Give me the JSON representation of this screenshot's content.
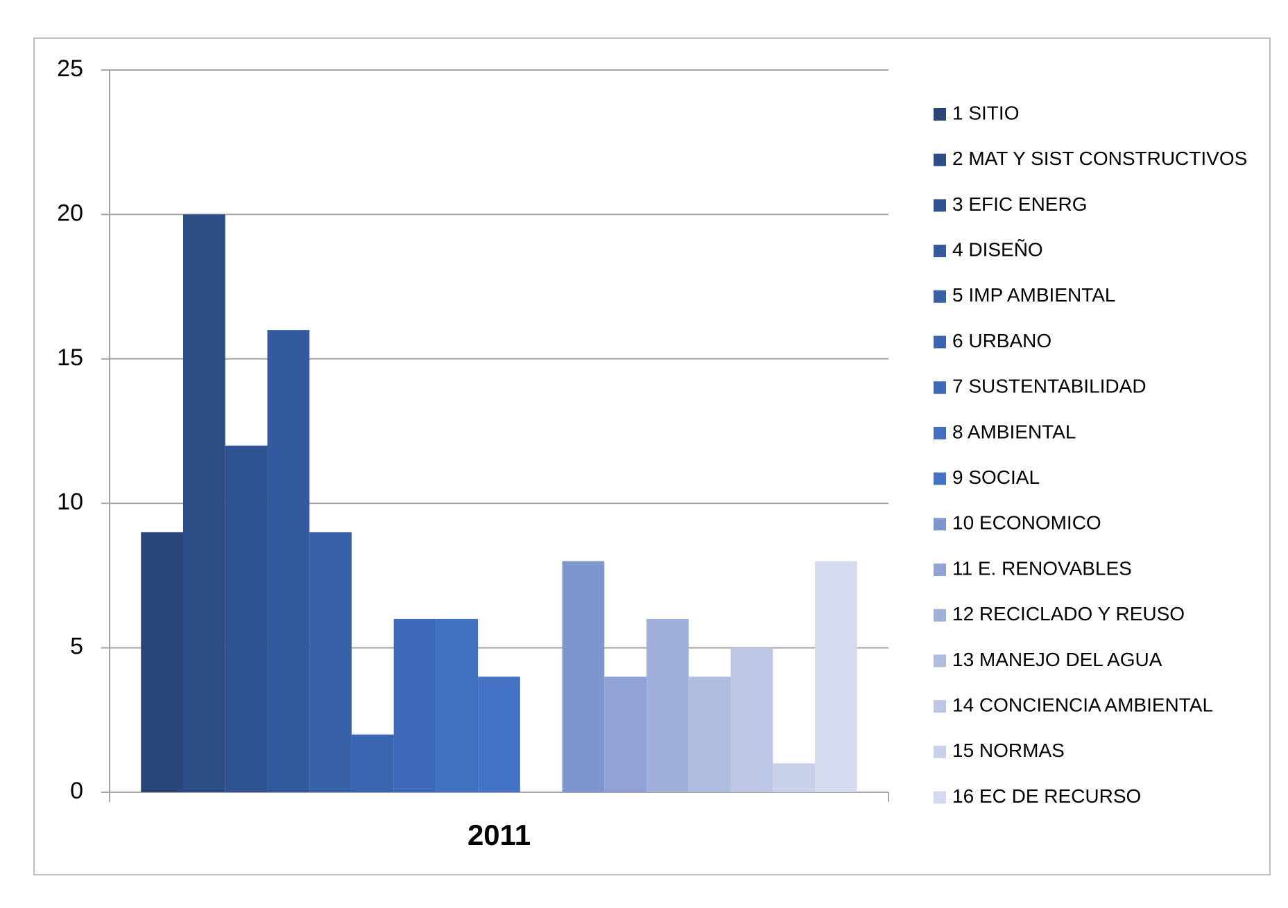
{
  "chart_data": {
    "type": "bar",
    "categories": [
      "2011"
    ],
    "series": [
      {
        "name": "1 SITIO",
        "color": "#2a4679",
        "values": [
          9
        ]
      },
      {
        "name": "2 MAT Y SIST CONSTRUCTIVOS",
        "color": "#2c4d86",
        "values": [
          20
        ]
      },
      {
        "name": "3 EFIC  ENERG",
        "color": "#2f5390",
        "values": [
          12
        ]
      },
      {
        "name": "4 DISEÑO",
        "color": "#335a9e",
        "values": [
          16
        ]
      },
      {
        "name": "5 IMP AMBIENTAL",
        "color": "#3861a8",
        "values": [
          9
        ]
      },
      {
        "name": "6 URBANO",
        "color": "#3a65b0",
        "values": [
          2
        ]
      },
      {
        "name": "7 SUSTENTABILIDAD",
        "color": "#3e6bb9",
        "values": [
          6
        ]
      },
      {
        "name": "8 AMBIENTAL",
        "color": "#4270c0",
        "values": [
          6
        ]
      },
      {
        "name": "9 SOCIAL",
        "color": "#4472c4",
        "values": [
          4
        ]
      },
      {
        "name": null,
        "color": null,
        "values": [
          null
        ]
      },
      {
        "name": "10 ECONOMICO",
        "color": "#7f95cd",
        "values": [
          8
        ]
      },
      {
        "name": "11 E. RENOVABLES",
        "color": "#90a3d4",
        "values": [
          4
        ]
      },
      {
        "name": "12 RECICLADO Y REUSO",
        "color": "#a0b0da",
        "values": [
          6
        ]
      },
      {
        "name": "13 MANEJO DEL AGUA",
        "color": "#afbce0",
        "values": [
          4
        ]
      },
      {
        "name": "14 CONCIENCIA AMBIENTAL",
        "color": "#bcc7e5",
        "values": [
          5
        ]
      },
      {
        "name": "15 NORMAS",
        "color": "#c9d1ea",
        "values": [
          1
        ]
      },
      {
        "name": "16 EC DE RECURSO",
        "color": "#d5dbee",
        "values": [
          8
        ]
      }
    ],
    "ylim": [
      0,
      25
    ],
    "yticks": [
      0,
      5,
      10,
      15,
      20,
      25
    ],
    "grid": true,
    "legend": "right"
  }
}
